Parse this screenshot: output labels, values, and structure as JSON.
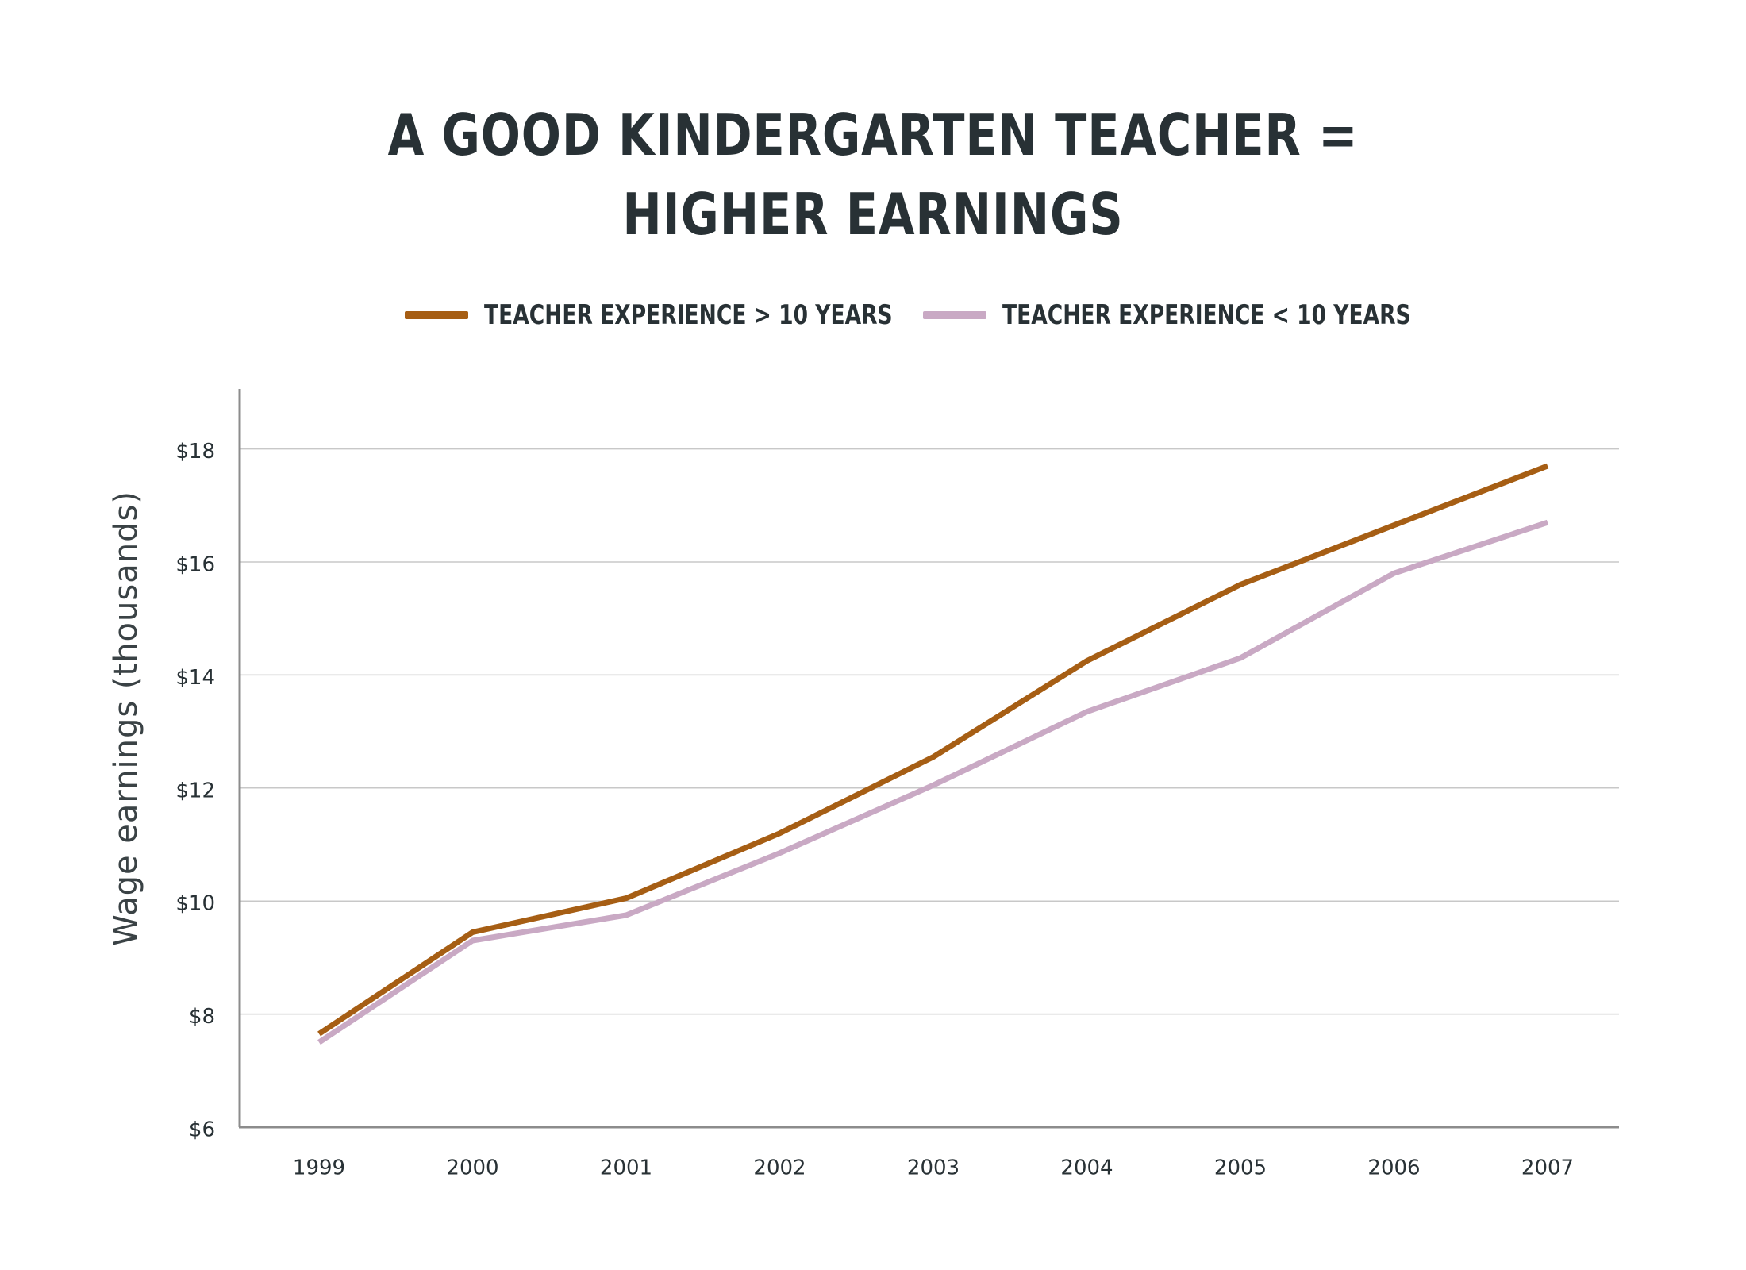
{
  "chart_data": {
    "type": "line",
    "title_lines": [
      "A GOOD KINDERGARTEN TEACHER =",
      "HIGHER EARNINGS"
    ],
    "xlabel": "",
    "ylabel": "Wage earnings (thousands)",
    "categories": [
      "1999",
      "2000",
      "2001",
      "2002",
      "2003",
      "2004",
      "2005",
      "2006",
      "2007"
    ],
    "ylim": [
      6,
      19
    ],
    "yticks": [
      6,
      8,
      10,
      12,
      14,
      16,
      18
    ],
    "ytick_labels": [
      "$6",
      "$8",
      "$10",
      "$12",
      "$14",
      "$16",
      "$18"
    ],
    "grid": true,
    "legend_position": "top",
    "series": [
      {
        "name": "TEACHER EXPERIENCE > 10 YEARS",
        "color": "#a65e14",
        "values": [
          7.65,
          9.45,
          10.05,
          11.2,
          12.55,
          14.25,
          15.6,
          16.65,
          17.7
        ]
      },
      {
        "name": "TEACHER EXPERIENCE < 10 YEARS",
        "color": "#c9a9c4",
        "values": [
          7.5,
          9.3,
          9.75,
          10.85,
          12.05,
          13.35,
          14.3,
          15.8,
          16.7
        ]
      }
    ]
  }
}
